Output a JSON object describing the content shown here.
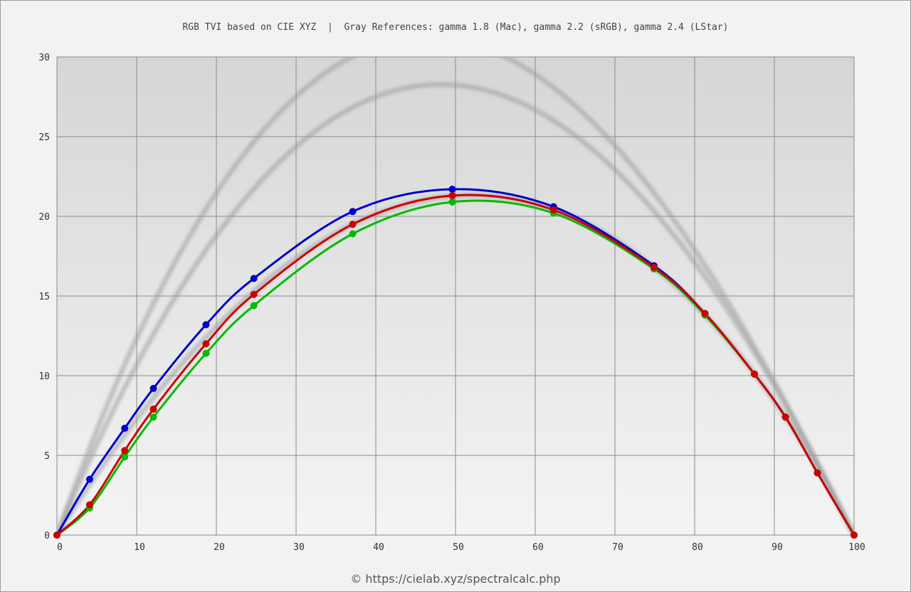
{
  "title": "RGB TVI based on CIE XYZ  |  Gray References: gamma 1.8 (Mac), gamma 2.2 (sRGB), gamma 2.4 (LStar)",
  "footer": "© https://cielab.xyz/spectralcalc.php",
  "chart_data": {
    "type": "line",
    "title": "RGB TVI based on CIE XYZ  |  Gray References: gamma 1.8 (Mac), gamma 2.2 (sRGB), gamma 2.4 (LStar)",
    "xlabel": "",
    "ylabel": "",
    "xlim": [
      0,
      100
    ],
    "ylim": [
      0,
      30
    ],
    "xticks": [
      0,
      10,
      20,
      30,
      40,
      50,
      60,
      70,
      80,
      90,
      100
    ],
    "yticks": [
      0,
      5,
      10,
      15,
      20,
      25,
      30
    ],
    "grid": true,
    "legend": "none",
    "series": [
      {
        "color": "#0000cc",
        "x": [
          0,
          4.1,
          8.5,
          12.1,
          18.7,
          24.7,
          37.1,
          49.6,
          62.3,
          74.9,
          81.3,
          87.5,
          91.4,
          95.4,
          100
        ],
        "y": [
          0,
          3.5,
          6.7,
          9.2,
          13.2,
          16.1,
          20.3,
          21.7,
          20.6,
          16.9,
          13.9,
          10.1,
          7.4,
          3.9,
          0
        ]
      },
      {
        "color": "#cc0000",
        "x": [
          0,
          4.1,
          8.5,
          12.1,
          18.7,
          24.7,
          37.1,
          49.6,
          62.3,
          74.9,
          81.3,
          87.5,
          91.4,
          95.4,
          100
        ],
        "y": [
          0,
          1.9,
          5.3,
          7.9,
          12.0,
          15.1,
          19.5,
          21.3,
          20.4,
          16.8,
          13.9,
          10.1,
          7.4,
          3.9,
          0
        ]
      },
      {
        "color": "#00bb00",
        "x": [
          0,
          4.1,
          8.5,
          12.1,
          18.7,
          24.7,
          37.1,
          49.6,
          62.3,
          74.9,
          81.3,
          87.5,
          91.4,
          95.4,
          100
        ],
        "y": [
          0,
          1.7,
          4.9,
          7.4,
          11.4,
          14.4,
          18.9,
          20.9,
          20.2,
          16.7,
          13.8,
          10.1,
          7.4,
          3.9,
          0
        ]
      }
    ],
    "reference_curves": [
      {
        "gamma": 1.8,
        "color": "#9a9a9a"
      },
      {
        "gamma": 2.2,
        "color": "#9a9a9a"
      },
      {
        "gamma": 2.4,
        "color": "#9a9a9a"
      }
    ]
  }
}
